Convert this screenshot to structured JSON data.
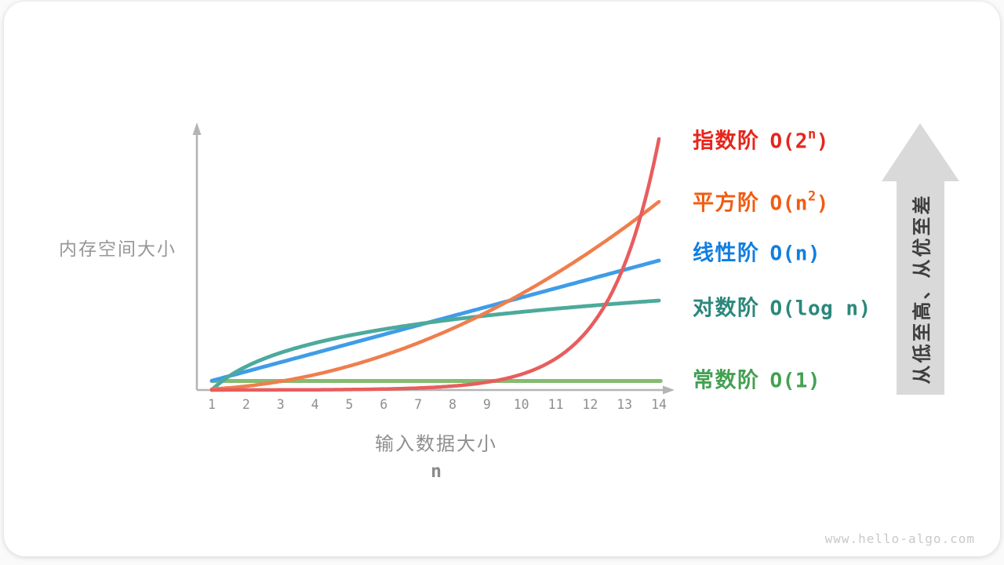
{
  "watermark": "www.hello-algo.com",
  "chart_data": {
    "type": "line",
    "title": "",
    "xlabel": "输入数据大小",
    "xlabel_var": "n",
    "ylabel": "内存空间大小",
    "x": [
      1,
      2,
      3,
      4,
      5,
      6,
      7,
      8,
      9,
      10,
      11,
      12,
      13,
      14
    ],
    "x_ticks": [
      "1",
      "2",
      "3",
      "4",
      "5",
      "6",
      "7",
      "8",
      "9",
      "10",
      "11",
      "12",
      "13",
      "14"
    ],
    "xlim": [
      1,
      14
    ],
    "grid": false,
    "y_axis": "qualitative (no ticks); curves normalized for schematic comparison",
    "legend_position": "right",
    "series": [
      {
        "name": "exponential",
        "label_zh": "指数阶",
        "big_o": "O(2^n)",
        "big_o_parts": {
          "base": "O(2",
          "sup": "n",
          "close": ")"
        },
        "curve_color": "#e85d5d",
        "label_color": "#e6261c",
        "values": [
          2,
          4,
          8,
          16,
          32,
          64,
          128,
          256,
          512,
          1024,
          2048,
          4096,
          8192,
          16384
        ]
      },
      {
        "name": "quadratic",
        "label_zh": "平方阶",
        "big_o": "O(n^2)",
        "big_o_parts": {
          "base": "O(n",
          "sup": "2",
          "close": ")"
        },
        "curve_color": "#ef7e4d",
        "label_color": "#f15c12",
        "values": [
          1,
          4,
          9,
          16,
          25,
          36,
          49,
          64,
          81,
          100,
          121,
          144,
          169,
          196
        ]
      },
      {
        "name": "linear",
        "label_zh": "线性阶",
        "big_o": "O(n)",
        "big_o_parts": {
          "base": "O(n",
          "sup": "",
          "close": ")"
        },
        "curve_color": "#3f9ce8",
        "label_color": "#117ee0",
        "values": [
          1,
          2,
          3,
          4,
          5,
          6,
          7,
          8,
          9,
          10,
          11,
          12,
          13,
          14
        ]
      },
      {
        "name": "logarithmic",
        "label_zh": "对数阶",
        "big_o": "O(log n)",
        "big_o_parts": {
          "base": "O(log n",
          "sup": "",
          "close": ")"
        },
        "curve_color": "#4caa9c",
        "label_color": "#2b887b",
        "values": [
          0,
          0.693,
          1.099,
          1.386,
          1.609,
          1.792,
          1.946,
          2.079,
          2.197,
          2.303,
          2.398,
          2.485,
          2.565,
          2.639
        ]
      },
      {
        "name": "constant",
        "label_zh": "常数阶",
        "big_o": "O(1)",
        "big_o_parts": {
          "base": "O(1",
          "sup": "",
          "close": ")"
        },
        "curve_color": "#85bb72",
        "label_color": "#43a152",
        "values": [
          1,
          1,
          1,
          1,
          1,
          1,
          1,
          1,
          1,
          1,
          1,
          1,
          1,
          1
        ]
      }
    ],
    "annotation_arrow": {
      "text": "从低至高、从优至差",
      "direction": "up",
      "color": "#d9d9d9"
    }
  }
}
